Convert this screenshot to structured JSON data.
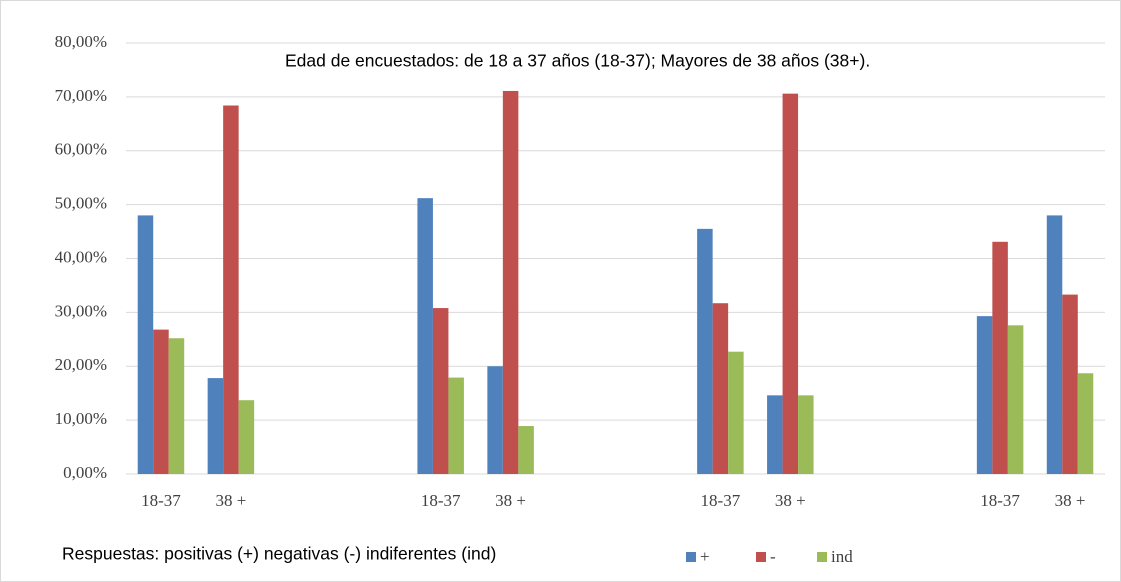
{
  "chart_data": {
    "type": "bar",
    "annotation": "Edad de encuestados: de 18 a 37 años (18-37); Mayores de 38 años (38+).",
    "x_label": "Respuestas: positivas (+) negativas (-)  indiferentes (ind)",
    "categories": [
      "18-37",
      "38 +",
      null,
      null,
      "18-37",
      "38 +",
      null,
      null,
      "18-37",
      "38 +",
      null,
      null,
      "18-37",
      "38 +"
    ],
    "series": [
      {
        "name": "+",
        "color": "#4f81bd",
        "values": [
          48.0,
          17.8,
          null,
          null,
          51.2,
          20.0,
          null,
          null,
          45.5,
          14.6,
          null,
          null,
          29.3,
          48.0
        ]
      },
      {
        "name": "-",
        "color": "#c0504d",
        "values": [
          26.8,
          68.4,
          null,
          null,
          30.8,
          71.1,
          null,
          null,
          31.7,
          70.6,
          null,
          null,
          43.1,
          33.3
        ]
      },
      {
        "name": "ind",
        "color": "#9bbb59",
        "values": [
          25.2,
          13.7,
          null,
          null,
          17.9,
          8.9,
          null,
          null,
          22.7,
          14.6,
          null,
          null,
          27.6,
          18.7
        ]
      }
    ],
    "ylim": [
      0,
      80
    ],
    "yticks": [
      {
        "value": 0,
        "label": "0,00%"
      },
      {
        "value": 10,
        "label": "10,00%"
      },
      {
        "value": 20,
        "label": "20,00%"
      },
      {
        "value": 30,
        "label": "30,00%"
      },
      {
        "value": 40,
        "label": "40,00%"
      },
      {
        "value": 50,
        "label": "50,00%"
      },
      {
        "value": 60,
        "label": "60,00%"
      },
      {
        "value": 70,
        "label": "70,00%"
      },
      {
        "value": 80,
        "label": "80,00%"
      }
    ],
    "grid": true,
    "legend": "bottom-right"
  }
}
